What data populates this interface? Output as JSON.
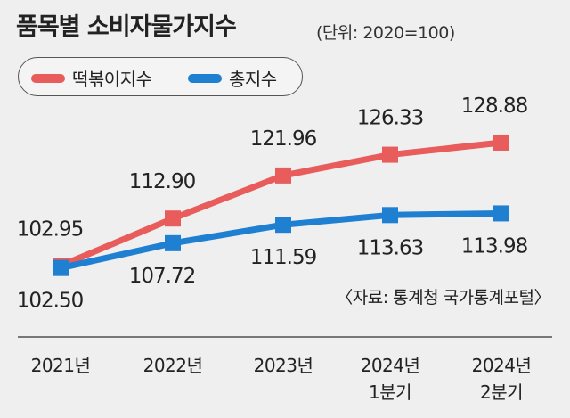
{
  "title": "품목별 소비자물가지수",
  "unit_note": "(단위: 2020=100)",
  "source_note": "〈자료: 통계청 국가통계포털〉",
  "colors": {
    "red_series": "#e85c5c",
    "blue_series": "#1f7fd1",
    "background": "#efefef"
  },
  "chart_data": {
    "type": "line",
    "categories": [
      "2021년",
      "2022년",
      "2023년",
      "2024년\n1분기",
      "2024년\n2분기"
    ],
    "series": [
      {
        "name": "떡볶이지수",
        "color": "#e85c5c",
        "values": [
          102.95,
          112.9,
          121.96,
          126.33,
          128.88
        ],
        "labels": [
          "102.95",
          "112.90",
          "121.96",
          "126.33",
          "128.88"
        ]
      },
      {
        "name": "총지수",
        "color": "#1f7fd1",
        "values": [
          102.5,
          107.72,
          111.59,
          113.63,
          113.98
        ],
        "labels": [
          "102.50",
          "107.72",
          "111.59",
          "113.63",
          "113.98"
        ]
      }
    ],
    "legend_placement": "top-left",
    "grid": false
  }
}
